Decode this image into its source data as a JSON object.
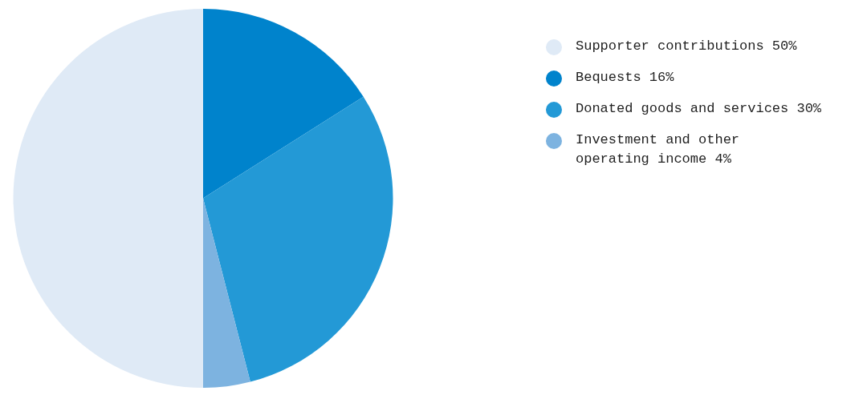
{
  "chart_data": {
    "type": "pie",
    "categories": [
      "Supporter contributions",
      "Bequests",
      "Donated goods and services",
      "Investment and other\noperating income"
    ],
    "values": [
      50,
      16,
      30,
      4
    ],
    "value_labels": [
      "50%",
      "16%",
      "30%",
      "4%"
    ],
    "colors": [
      "#dfeaf6",
      "#0083cc",
      "#2399d6",
      "#7db3e0"
    ],
    "legend": "right"
  }
}
